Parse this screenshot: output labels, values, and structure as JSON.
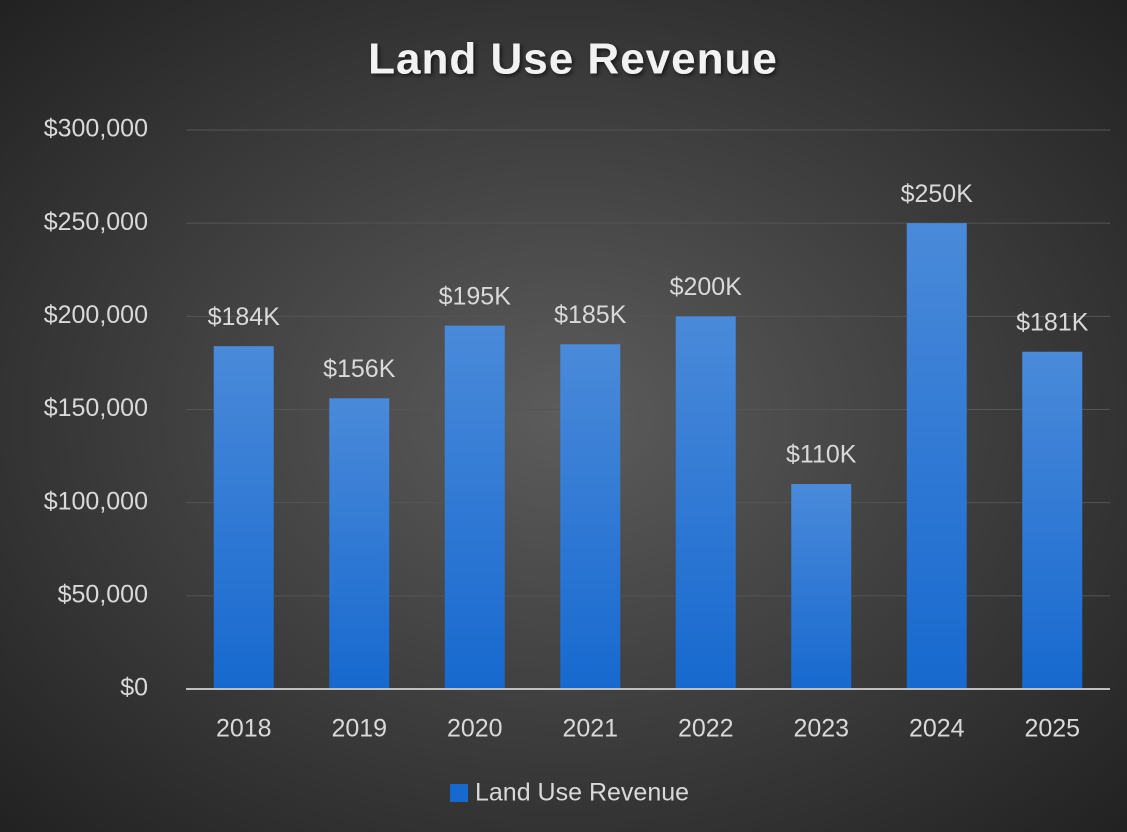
{
  "chart_data": {
    "type": "bar",
    "title": "Land Use Revenue",
    "categories": [
      "2018",
      "2019",
      "2020",
      "2021",
      "2022",
      "2023",
      "2024",
      "2025"
    ],
    "series": [
      {
        "name": "Land Use Revenue",
        "color": "#1769cf",
        "values": [
          184000,
          156000,
          195000,
          185000,
          200000,
          110000,
          250000,
          181000
        ],
        "value_labels": [
          "$184K",
          "$156K",
          "$195K",
          "$185K",
          "$200K",
          "$110K",
          "$250K",
          "$181K"
        ]
      }
    ],
    "ylim": [
      0,
      300000
    ],
    "yticks": [
      {
        "value": 0,
        "label": "$0"
      },
      {
        "value": 50000,
        "label": "$50,000"
      },
      {
        "value": 100000,
        "label": "$100,000"
      },
      {
        "value": 150000,
        "label": "$150,000"
      },
      {
        "value": 200000,
        "label": "$200,000"
      },
      {
        "value": 250000,
        "label": "$250,000"
      },
      {
        "value": 300000,
        "label": "$300,000"
      }
    ],
    "grid": true,
    "legend": "bottom"
  }
}
